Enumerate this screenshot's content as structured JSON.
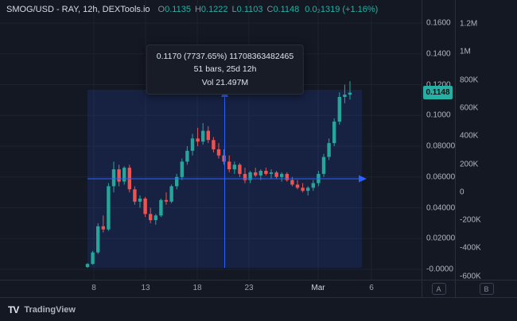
{
  "header": {
    "symbol_title": "SMOG/USD - RAY, 12h, DEXTools.io",
    "ohlc": {
      "o_label": "O",
      "o": "0.1135",
      "h_label": "H",
      "h": "0.1222",
      "l_label": "L",
      "l": "0.1103",
      "c_label": "C",
      "c": "0.1148",
      "change": "0.0₂1319 (+1.16%)"
    }
  },
  "measure_tooltip": {
    "line1": "0.1170 (7737.65%) 11708363482465",
    "line2": "51 bars, 25d 12h",
    "line3": "Vol 21.497M"
  },
  "price_scale": {
    "ticks": [
      "0.1600",
      "0.1400",
      "0.1200",
      "0.1000",
      "0.08000",
      "0.06000",
      "0.04000",
      "0.02000",
      "-0.0000"
    ],
    "last_price_label": "0.1148",
    "button_label": "A"
  },
  "volume_scale": {
    "ticks": [
      "1.2M",
      "1M",
      "800K",
      "600K",
      "400K",
      "200K",
      "0",
      "-200K",
      "-400K",
      "-600K"
    ],
    "button_label": "B"
  },
  "time_scale": {
    "ticks": [
      {
        "label": "8",
        "major": false
      },
      {
        "label": "13",
        "major": false
      },
      {
        "label": "18",
        "major": false
      },
      {
        "label": "23",
        "major": false
      },
      {
        "label": "Mar",
        "major": true
      },
      {
        "label": "6",
        "major": false
      }
    ]
  },
  "footer": {
    "logo": "TV",
    "brand": "TradingView"
  },
  "colors": {
    "background": "#141823",
    "grid": "#1e2230",
    "border": "#2a2e39",
    "green": "#26a69a",
    "red": "#ef5350",
    "blue": "#2962ff",
    "selection_fill": "rgba(41,98,255,0.14)",
    "price_label_bg": "#26b0a3",
    "price_label_text": "#0b1217"
  },
  "chart_data": {
    "type": "candlestick",
    "symbol": "SMOG/USD",
    "exchange": "RAY",
    "interval": "12h",
    "source": "DEXTools.io",
    "last_price": 0.1148,
    "price_axis": {
      "min": 0.0,
      "max": 0.16,
      "tick_step": 0.02
    },
    "volume_axis": {
      "min": -600000,
      "max": 1200000,
      "tick_step": 200000
    },
    "time_tick_labels": [
      "8",
      "13",
      "18",
      "23",
      "Mar",
      "6"
    ],
    "measure": {
      "price_change": 0.117,
      "percent_change": "7737.65%",
      "bars": 51,
      "duration": "25d 12h",
      "volume": "21.497M"
    },
    "candles": [
      [
        0.0015,
        0.004,
        0.001,
        0.0035
      ],
      [
        0.0035,
        0.012,
        0.003,
        0.011
      ],
      [
        0.011,
        0.03,
        0.01,
        0.028
      ],
      [
        0.028,
        0.035,
        0.024,
        0.026
      ],
      [
        0.026,
        0.056,
        0.025,
        0.054
      ],
      [
        0.054,
        0.07,
        0.05,
        0.065
      ],
      [
        0.065,
        0.068,
        0.054,
        0.057
      ],
      [
        0.057,
        0.067,
        0.055,
        0.066
      ],
      [
        0.066,
        0.068,
        0.05,
        0.052
      ],
      [
        0.052,
        0.054,
        0.042,
        0.044
      ],
      [
        0.044,
        0.048,
        0.04,
        0.046
      ],
      [
        0.046,
        0.047,
        0.034,
        0.036
      ],
      [
        0.036,
        0.04,
        0.03,
        0.032
      ],
      [
        0.032,
        0.036,
        0.029,
        0.035
      ],
      [
        0.035,
        0.046,
        0.034,
        0.045
      ],
      [
        0.045,
        0.05,
        0.042,
        0.044
      ],
      [
        0.044,
        0.055,
        0.043,
        0.054
      ],
      [
        0.054,
        0.062,
        0.052,
        0.06
      ],
      [
        0.06,
        0.072,
        0.058,
        0.07
      ],
      [
        0.07,
        0.08,
        0.068,
        0.077
      ],
      [
        0.077,
        0.088,
        0.074,
        0.085
      ],
      [
        0.085,
        0.092,
        0.08,
        0.083
      ],
      [
        0.083,
        0.095,
        0.081,
        0.09
      ],
      [
        0.09,
        0.093,
        0.082,
        0.084
      ],
      [
        0.084,
        0.086,
        0.076,
        0.078
      ],
      [
        0.078,
        0.082,
        0.072,
        0.074
      ],
      [
        0.074,
        0.078,
        0.068,
        0.07
      ],
      [
        0.07,
        0.074,
        0.063,
        0.065
      ],
      [
        0.065,
        0.07,
        0.062,
        0.068
      ],
      [
        0.068,
        0.069,
        0.06,
        0.062
      ],
      [
        0.062,
        0.066,
        0.056,
        0.058
      ],
      [
        0.058,
        0.064,
        0.056,
        0.063
      ],
      [
        0.063,
        0.066,
        0.06,
        0.061
      ],
      [
        0.061,
        0.065,
        0.058,
        0.064
      ],
      [
        0.064,
        0.066,
        0.061,
        0.062
      ],
      [
        0.062,
        0.065,
        0.059,
        0.063
      ],
      [
        0.063,
        0.064,
        0.059,
        0.06
      ],
      [
        0.06,
        0.063,
        0.057,
        0.062
      ],
      [
        0.062,
        0.063,
        0.057,
        0.058
      ],
      [
        0.058,
        0.06,
        0.054,
        0.055
      ],
      [
        0.055,
        0.058,
        0.052,
        0.053
      ],
      [
        0.053,
        0.056,
        0.05,
        0.051
      ],
      [
        0.051,
        0.054,
        0.048,
        0.053
      ],
      [
        0.053,
        0.058,
        0.051,
        0.056
      ],
      [
        0.056,
        0.064,
        0.054,
        0.062
      ],
      [
        0.062,
        0.075,
        0.06,
        0.073
      ],
      [
        0.073,
        0.085,
        0.071,
        0.082
      ],
      [
        0.082,
        0.098,
        0.08,
        0.096
      ],
      [
        0.096,
        0.115,
        0.094,
        0.112
      ],
      [
        0.112,
        0.12,
        0.108,
        0.1135
      ],
      [
        0.1135,
        0.1222,
        0.1103,
        0.1148
      ]
    ]
  }
}
